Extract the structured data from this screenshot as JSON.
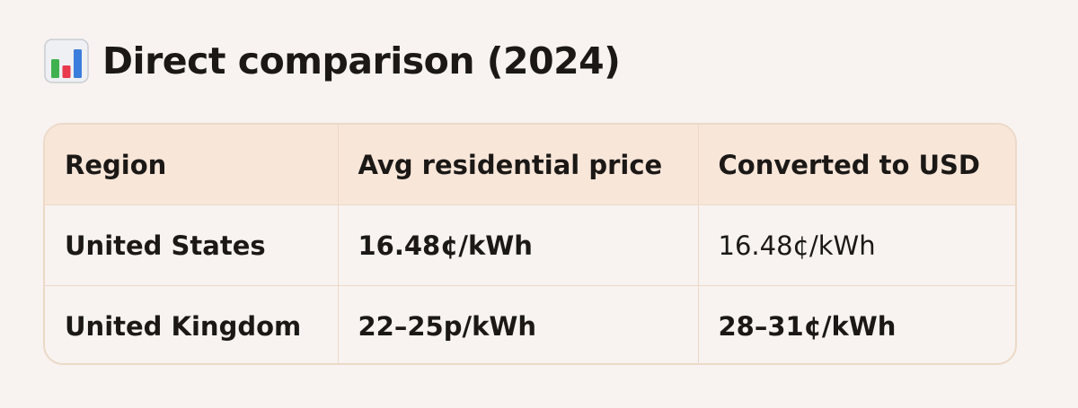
{
  "heading": {
    "icon": "bar-chart-icon",
    "title": "Direct comparison (2024)"
  },
  "table": {
    "headers": [
      "Region",
      "Avg residential price",
      "Converted to USD"
    ],
    "rows": [
      [
        "United States",
        "16.48¢/kWh",
        "16.48¢/kWh"
      ],
      [
        "United Kingdom",
        "22–25p/kWh",
        "28–31¢/kWh"
      ]
    ]
  },
  "colors": {
    "background": "#f8f3f0",
    "header_background": "#f8e6d9",
    "border": "#ecd9c8",
    "text": "#1b1816"
  }
}
